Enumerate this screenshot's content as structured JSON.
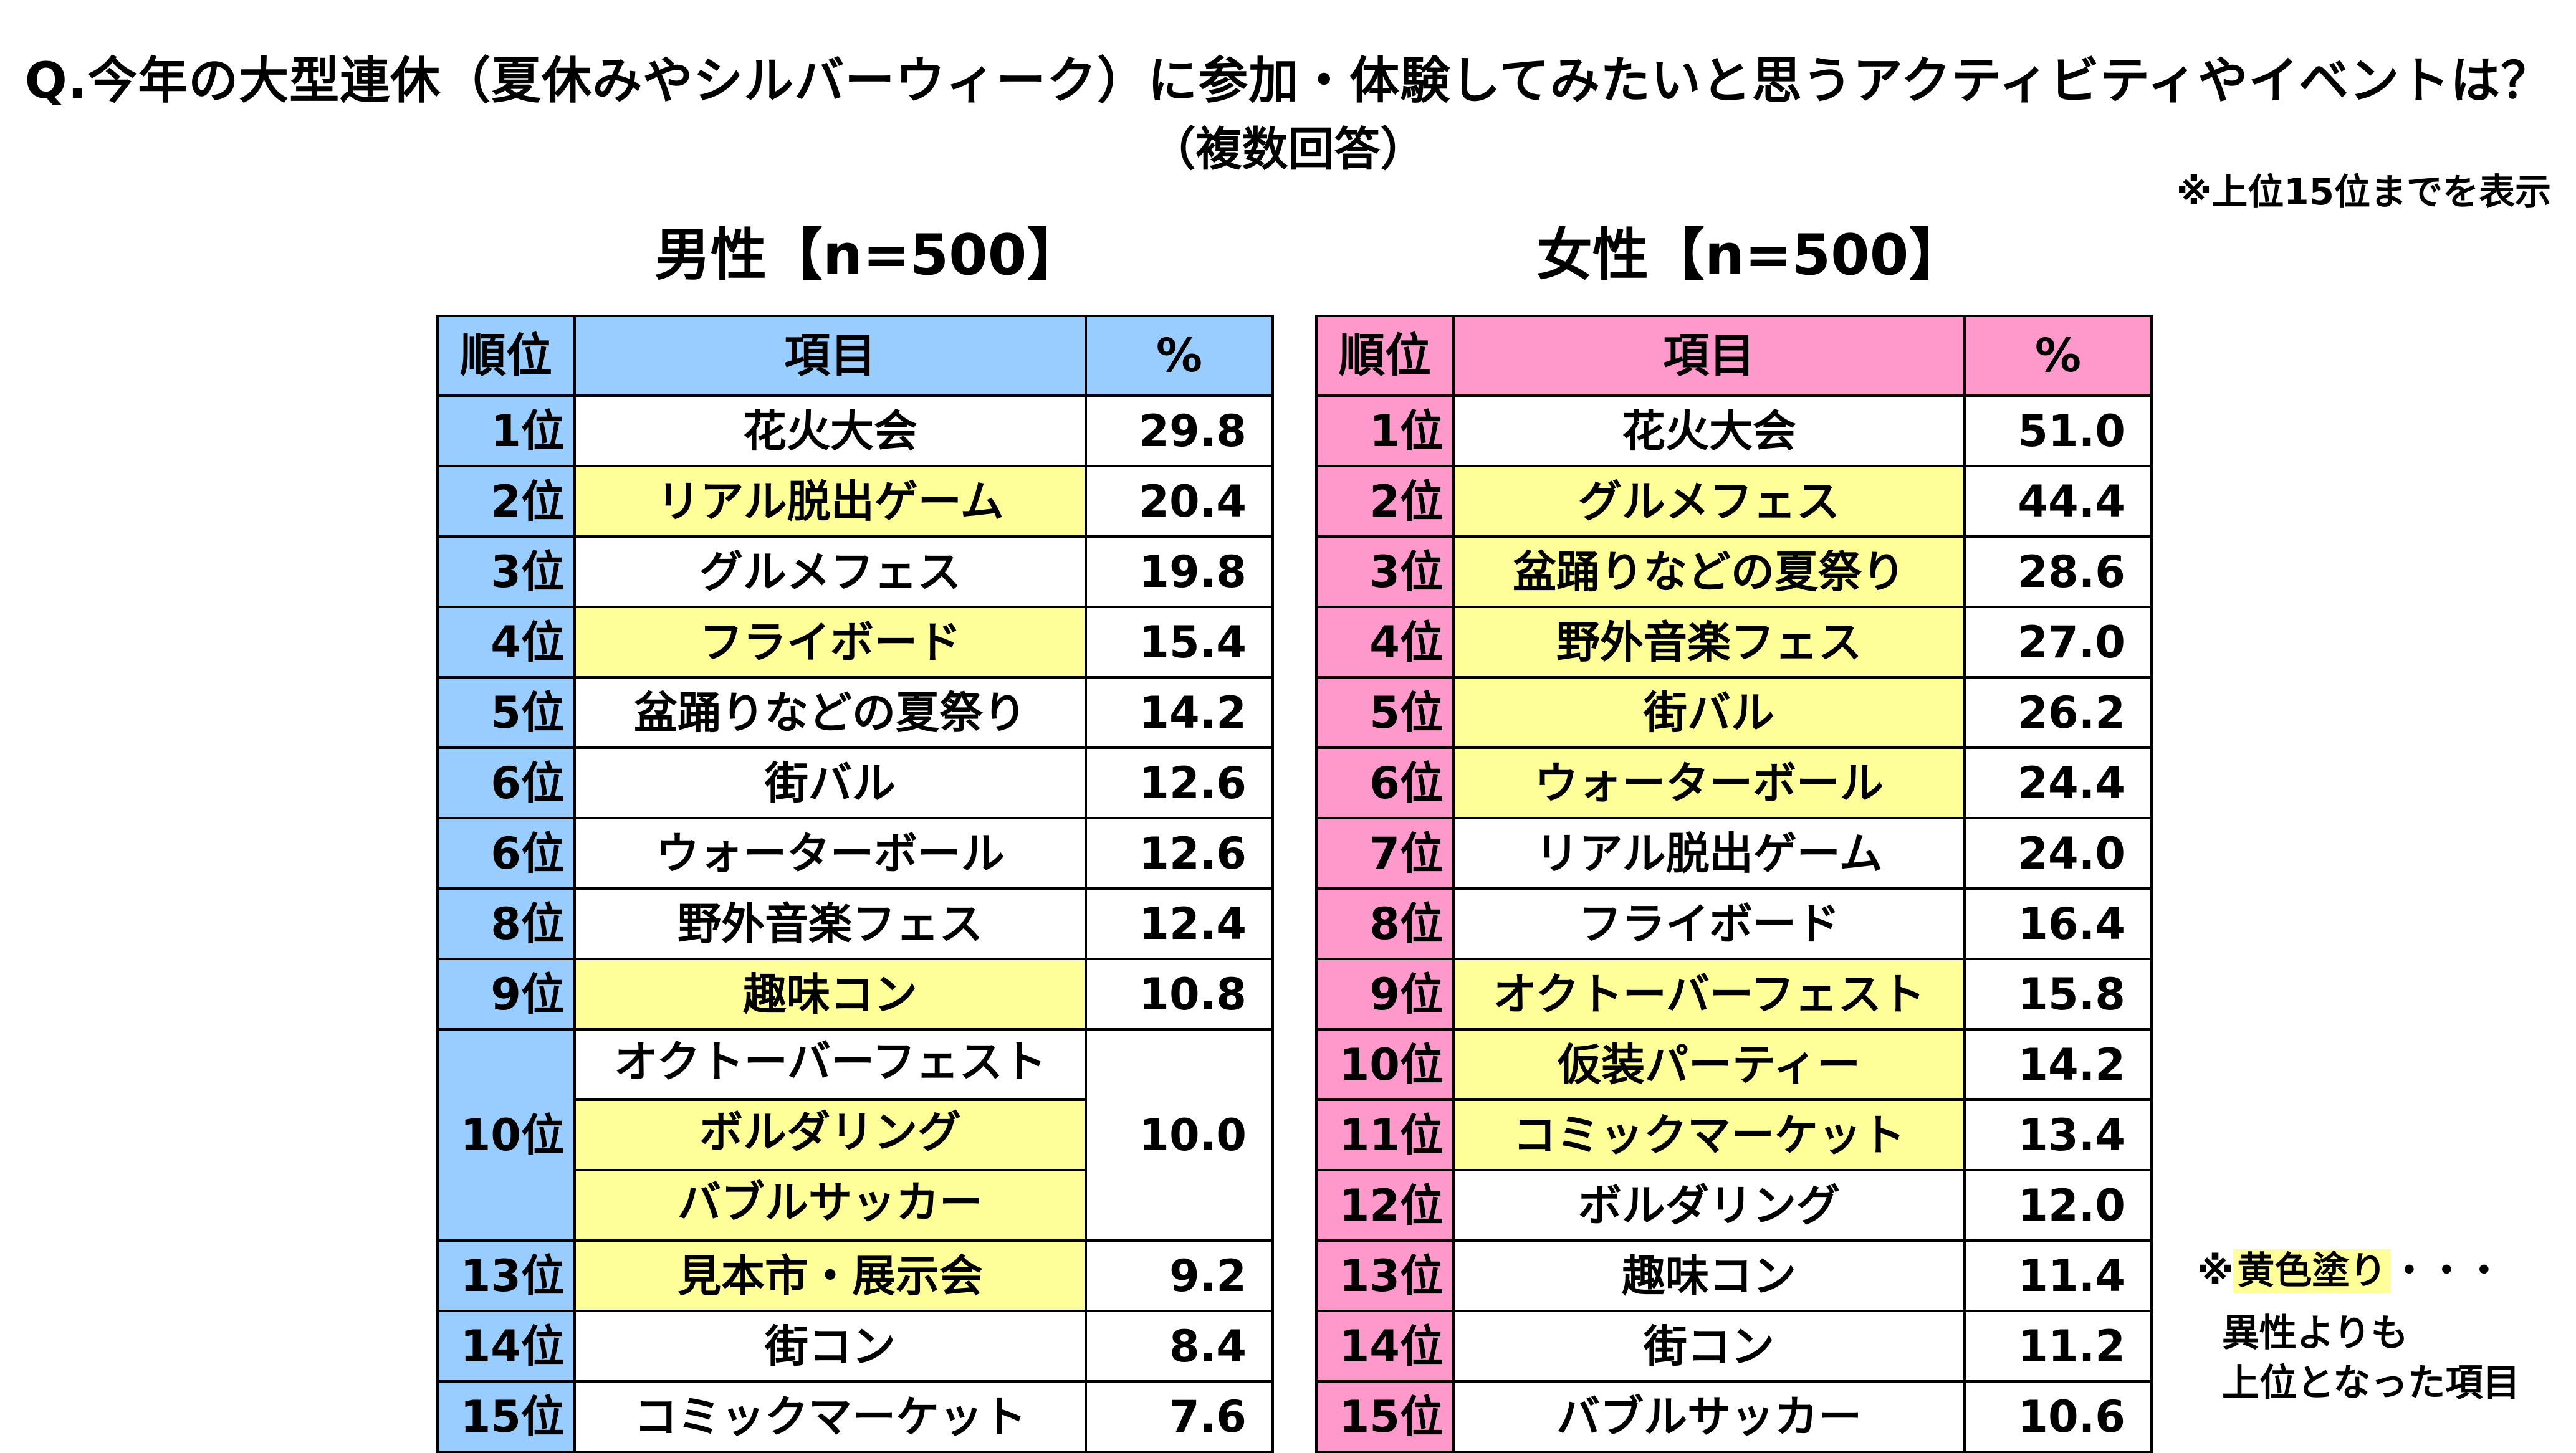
{
  "title": "Q.今年の大型連休（夏休みやシルバーウィーク）に参加・体験してみたいと思うアクティビティやイベントは？",
  "subtitle": "（複数回答）",
  "note_top": "※上位15位までを表示",
  "colors": {
    "male_header": "#99ccff",
    "female_header": "#ff99cc",
    "highlight": "#ffff99"
  },
  "headers": {
    "rank": "順位",
    "item": "項目",
    "pct": "%"
  },
  "male": {
    "heading": "男性【n=500】",
    "rows": [
      {
        "rank": "1位",
        "items": [
          {
            "name": "花火大会",
            "hl": false
          }
        ],
        "pct": "29.8"
      },
      {
        "rank": "2位",
        "items": [
          {
            "name": "リアル脱出ゲーム",
            "hl": true
          }
        ],
        "pct": "20.4"
      },
      {
        "rank": "3位",
        "items": [
          {
            "name": "グルメフェス",
            "hl": false
          }
        ],
        "pct": "19.8"
      },
      {
        "rank": "4位",
        "items": [
          {
            "name": "フライボード",
            "hl": true
          }
        ],
        "pct": "15.4"
      },
      {
        "rank": "5位",
        "items": [
          {
            "name": "盆踊りなどの夏祭り",
            "hl": false
          }
        ],
        "pct": "14.2"
      },
      {
        "rank": "6位",
        "items": [
          {
            "name": "街バル",
            "hl": false
          }
        ],
        "pct": "12.6"
      },
      {
        "rank": "6位",
        "items": [
          {
            "name": "ウォーターボール",
            "hl": false
          }
        ],
        "pct": "12.6"
      },
      {
        "rank": "8位",
        "items": [
          {
            "name": "野外音楽フェス",
            "hl": false
          }
        ],
        "pct": "12.4"
      },
      {
        "rank": "9位",
        "items": [
          {
            "name": "趣味コン",
            "hl": true
          }
        ],
        "pct": "10.8"
      },
      {
        "rank": "10位",
        "items": [
          {
            "name": "オクトーバーフェスト",
            "hl": false
          },
          {
            "name": "ボルダリング",
            "hl": true
          },
          {
            "name": "バブルサッカー",
            "hl": true
          }
        ],
        "pct": "10.0"
      },
      {
        "rank": "13位",
        "items": [
          {
            "name": "見本市・展示会",
            "hl": true
          }
        ],
        "pct": "9.2"
      },
      {
        "rank": "14位",
        "items": [
          {
            "name": "街コン",
            "hl": false
          }
        ],
        "pct": "8.4"
      },
      {
        "rank": "15位",
        "items": [
          {
            "name": "コミックマーケット",
            "hl": false
          }
        ],
        "pct": "7.6"
      }
    ]
  },
  "female": {
    "heading": "女性【n=500】",
    "rows": [
      {
        "rank": "1位",
        "items": [
          {
            "name": "花火大会",
            "hl": false
          }
        ],
        "pct": "51.0"
      },
      {
        "rank": "2位",
        "items": [
          {
            "name": "グルメフェス",
            "hl": true
          }
        ],
        "pct": "44.4"
      },
      {
        "rank": "3位",
        "items": [
          {
            "name": "盆踊りなどの夏祭り",
            "hl": true
          }
        ],
        "pct": "28.6"
      },
      {
        "rank": "4位",
        "items": [
          {
            "name": "野外音楽フェス",
            "hl": true
          }
        ],
        "pct": "27.0"
      },
      {
        "rank": "5位",
        "items": [
          {
            "name": "街バル",
            "hl": true
          }
        ],
        "pct": "26.2"
      },
      {
        "rank": "6位",
        "items": [
          {
            "name": "ウォーターボール",
            "hl": true
          }
        ],
        "pct": "24.4"
      },
      {
        "rank": "7位",
        "items": [
          {
            "name": "リアル脱出ゲーム",
            "hl": false
          }
        ],
        "pct": "24.0"
      },
      {
        "rank": "8位",
        "items": [
          {
            "name": "フライボード",
            "hl": false
          }
        ],
        "pct": "16.4"
      },
      {
        "rank": "9位",
        "items": [
          {
            "name": "オクトーバーフェスト",
            "hl": true
          }
        ],
        "pct": "15.8"
      },
      {
        "rank": "10位",
        "items": [
          {
            "name": "仮装パーティー",
            "hl": true
          }
        ],
        "pct": "14.2"
      },
      {
        "rank": "11位",
        "items": [
          {
            "name": "コミックマーケット",
            "hl": true
          }
        ],
        "pct": "13.4"
      },
      {
        "rank": "12位",
        "items": [
          {
            "name": "ボルダリング",
            "hl": false
          }
        ],
        "pct": "12.0"
      },
      {
        "rank": "13位",
        "items": [
          {
            "name": "趣味コン",
            "hl": false
          }
        ],
        "pct": "11.4"
      },
      {
        "rank": "14位",
        "items": [
          {
            "name": "街コン",
            "hl": false
          }
        ],
        "pct": "11.2"
      },
      {
        "rank": "15位",
        "items": [
          {
            "name": "バブルサッカー",
            "hl": false
          }
        ],
        "pct": "10.6"
      }
    ]
  },
  "legend": {
    "prefix": "※",
    "swatch_text": "黄色塗り",
    "suffix": "・・・",
    "desc_line1": "異性よりも",
    "desc_line2": "上位となった項目"
  }
}
